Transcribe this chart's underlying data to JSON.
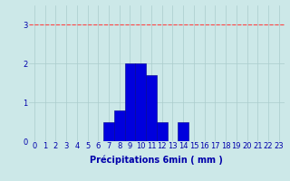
{
  "categories": [
    0,
    1,
    2,
    3,
    4,
    5,
    6,
    7,
    8,
    9,
    10,
    11,
    12,
    13,
    14,
    15,
    16,
    17,
    18,
    19,
    20,
    21,
    22,
    23
  ],
  "values": [
    0,
    0,
    0,
    0,
    0,
    0,
    0,
    0.5,
    0.8,
    2.0,
    2.0,
    1.7,
    0.5,
    0,
    0.5,
    0,
    0,
    0,
    0,
    0,
    0,
    0,
    0,
    0
  ],
  "bar_color": "#0000dd",
  "bar_edge_color": "#00008b",
  "background_color": "#cce8e8",
  "grid_color": "#aacccc",
  "tick_color": "#0000aa",
  "label_color": "#0000aa",
  "xlabel": "Précipitations 6min ( mm )",
  "ylim": [
    0,
    3.5
  ],
  "yticks": [
    0,
    1,
    2,
    3
  ],
  "xlim": [
    -0.5,
    23.5
  ],
  "hline_y": 3,
  "hline_color": "#ff4444",
  "hline_style": "--",
  "label_fontsize": 7,
  "tick_fontsize": 6
}
